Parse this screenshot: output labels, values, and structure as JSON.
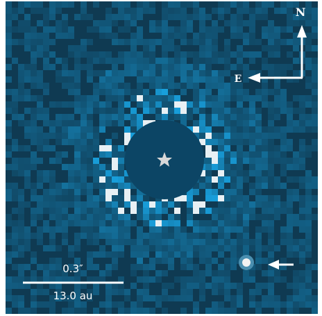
{
  "labels": {
    "north": "N",
    "east": "E",
    "angular_scale": "0.3″",
    "physical_scale": "13.0 au"
  }
}
